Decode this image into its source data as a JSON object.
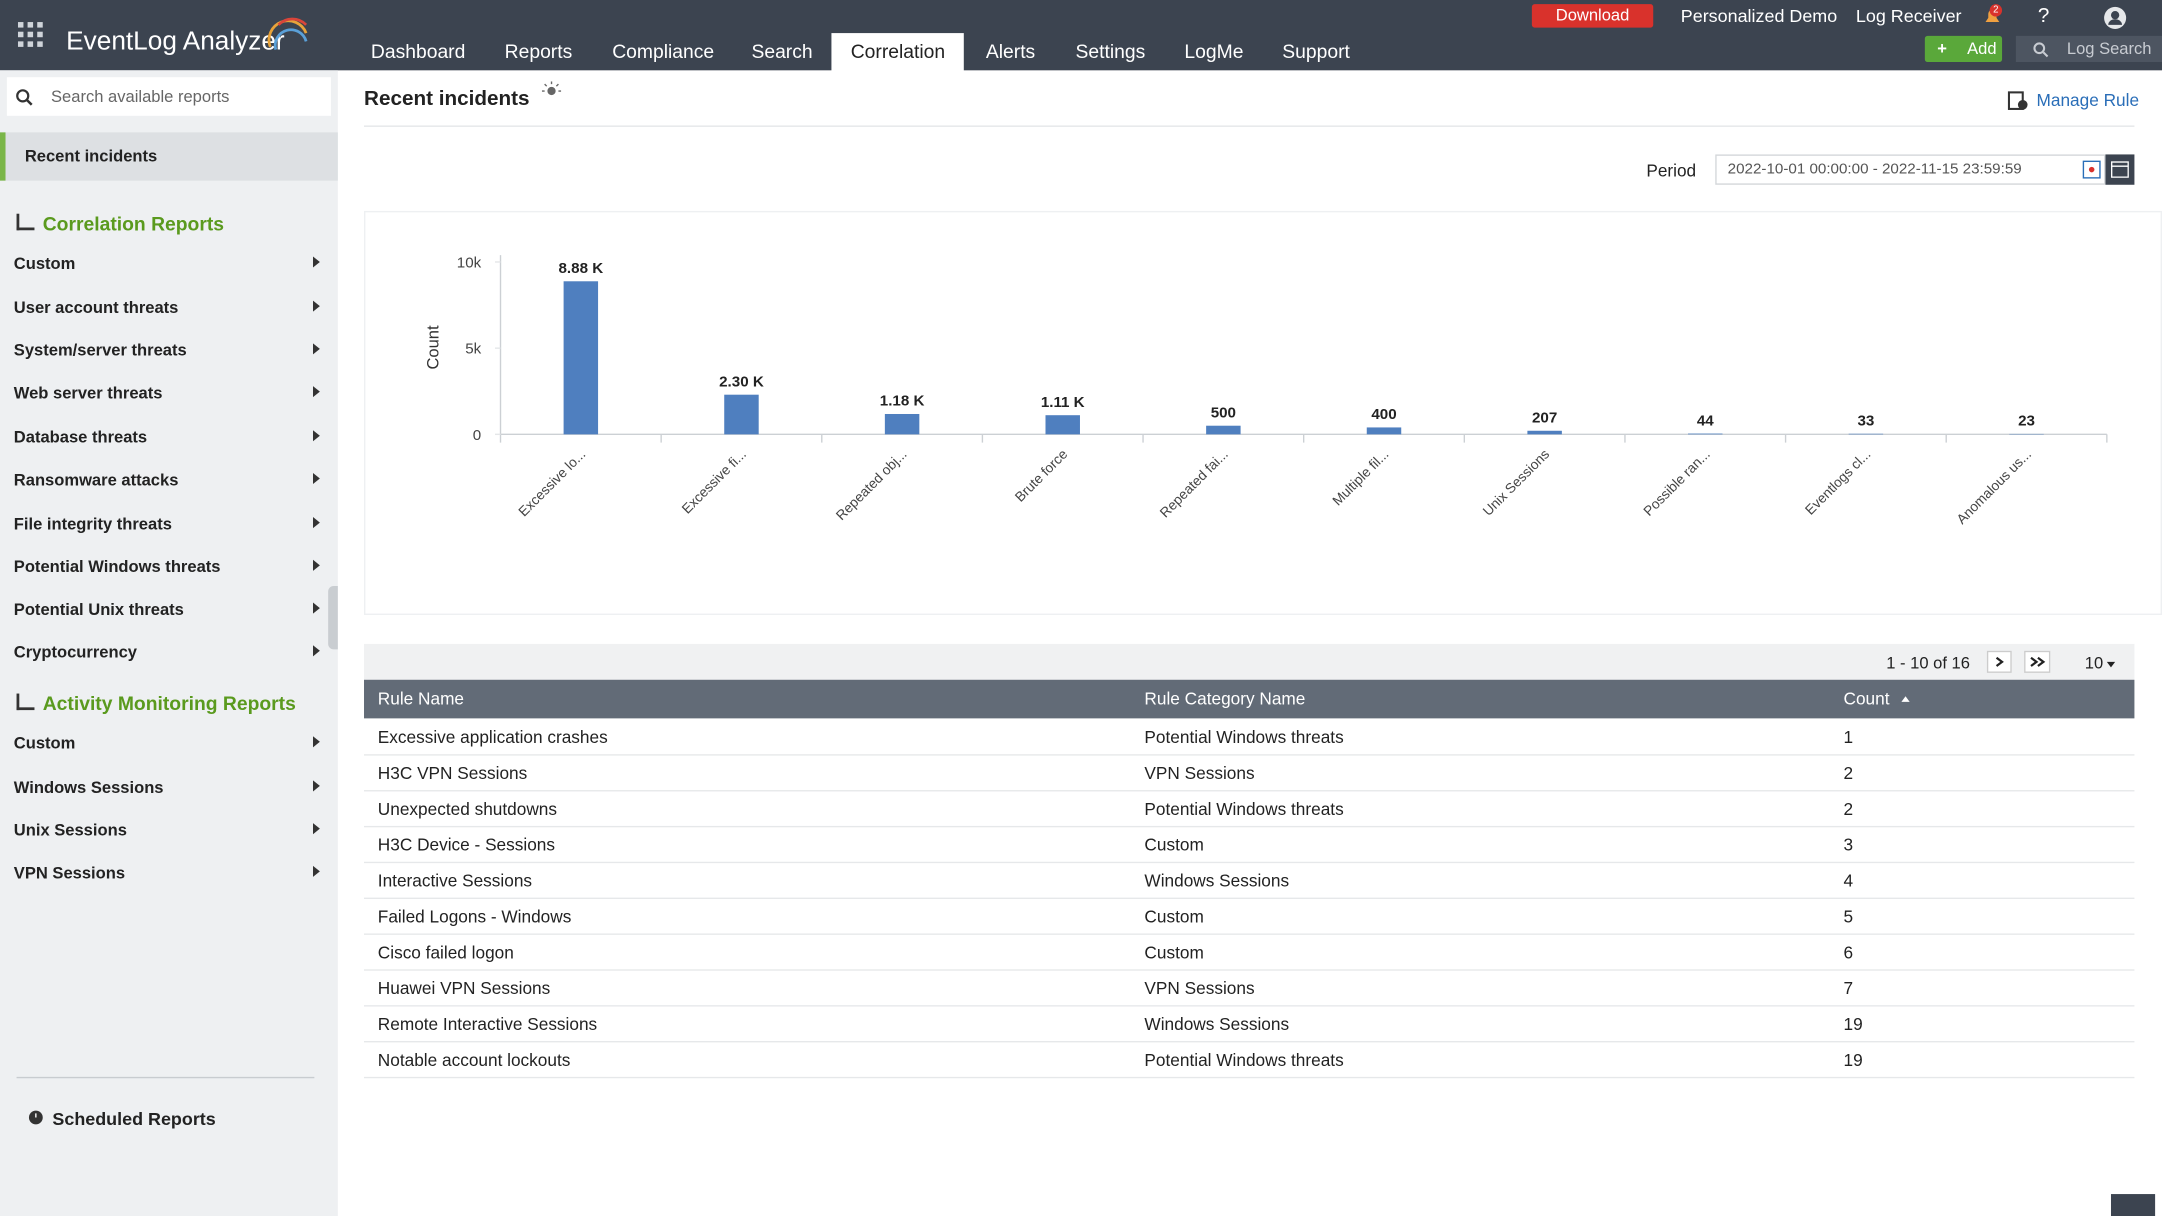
{
  "header": {
    "brand": "EventLog Analyzer",
    "nav": [
      "Dashboard",
      "Reports",
      "Compliance",
      "Search",
      "Correlation",
      "Alerts",
      "Settings",
      "LogMe",
      "Support"
    ],
    "download": "Download",
    "personalized_demo": "Personalized Demo",
    "log_receiver": "Log Receiver",
    "notification_count": "2",
    "help": "?",
    "add": "Add",
    "log_search": "Log Search"
  },
  "sidebar": {
    "search_placeholder": "Search available reports",
    "recent": "Recent incidents",
    "sections": [
      {
        "title": "Correlation Reports",
        "items": [
          "Custom",
          "User account threats",
          "System/server threats",
          "Web server threats",
          "Database threats",
          "Ransomware attacks",
          "File integrity threats",
          "Potential Windows threats",
          "Potential Unix threats",
          "Cryptocurrency"
        ]
      },
      {
        "title": "Activity Monitoring Reports",
        "items": [
          "Custom",
          "Windows Sessions",
          "Unix Sessions",
          "VPN Sessions"
        ]
      }
    ],
    "scheduled": "Scheduled Reports"
  },
  "page": {
    "title": "Recent incidents",
    "manage_rule": "Manage Rule",
    "period_label": "Period",
    "period_value": "2022-10-01 00:00:00 - 2022-11-15 23:59:59"
  },
  "chart_data": {
    "type": "bar",
    "y_label": "Count",
    "categories": [
      "Excessive lo...",
      "Excessive fi...",
      "Repeated obj...",
      "Brute force",
      "Repeated fai...",
      "Multiple fil...",
      "Unix Sessions",
      "Possible ran...",
      "Eventlogs cl...",
      "Anomalous us..."
    ],
    "values": [
      8880,
      2300,
      1180,
      1110,
      500,
      400,
      207,
      44,
      33,
      23
    ],
    "value_labels": [
      "8.88 K",
      "2.30 K",
      "1.18 K",
      "1.11 K",
      "500",
      "400",
      "207",
      "44",
      "33",
      "23"
    ],
    "color": "#4f7fbf",
    "ylim": [
      0,
      10000
    ],
    "yticks": [
      0,
      {
        "value": 5000,
        "label": "5k"
      },
      {
        "value": 10000,
        "label": "10k"
      }
    ],
    "grid": false
  },
  "table": {
    "pagination": "1 - 10 of 16",
    "page_size": "10",
    "columns": [
      "Rule Name",
      "Rule Category Name",
      "Count"
    ],
    "rows": [
      [
        "Excessive application crashes",
        "Potential Windows threats",
        "1"
      ],
      [
        "H3C VPN Sessions",
        "VPN Sessions",
        "2"
      ],
      [
        "Unexpected shutdowns",
        "Potential Windows threats",
        "2"
      ],
      [
        "H3C Device - Sessions",
        "Custom",
        "3"
      ],
      [
        "Interactive Sessions",
        "Windows Sessions",
        "4"
      ],
      [
        "Failed Logons - Windows",
        "Custom",
        "5"
      ],
      [
        "Cisco failed logon",
        "Custom",
        "6"
      ],
      [
        "Huawei VPN Sessions",
        "VPN Sessions",
        "7"
      ],
      [
        "Remote Interactive Sessions",
        "Windows Sessions",
        "19"
      ],
      [
        "Notable account lockouts",
        "Potential Windows threats",
        "19"
      ]
    ]
  }
}
